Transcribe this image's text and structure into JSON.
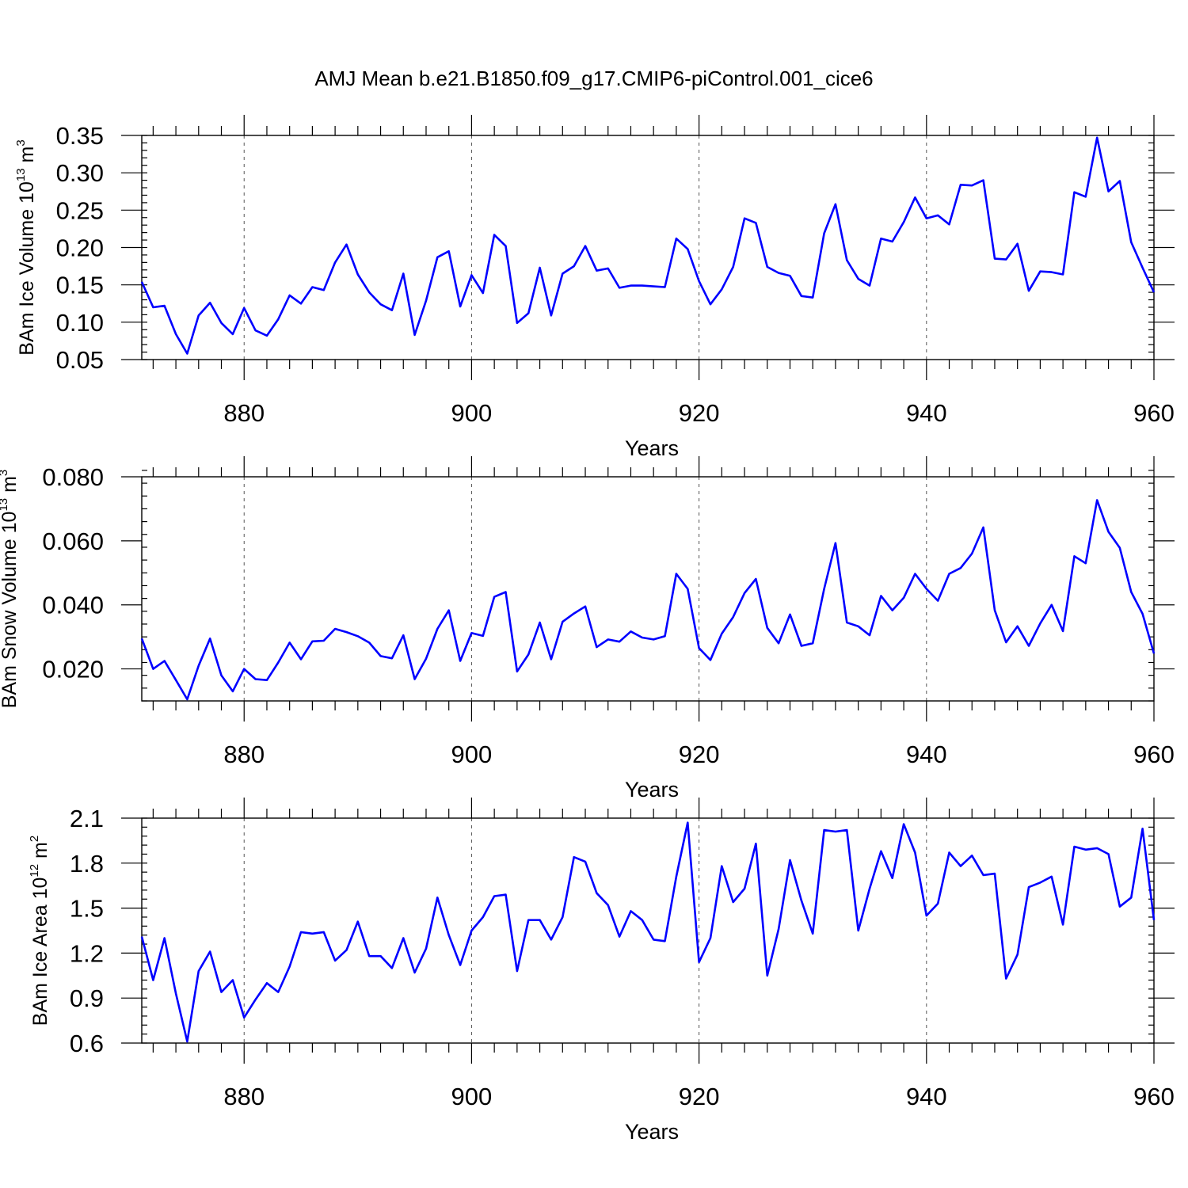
{
  "figure": {
    "title": "AMJ Mean b.e21.B1850.f09_g17.CMIP6-piControl.001_cice6"
  },
  "chart_data": [
    {
      "type": "line",
      "xlabel": "Years",
      "ylabel": {
        "main": "BAm Ice Volume 10",
        "exponent": "13",
        "unit": " m",
        "unit_exponent": "3"
      },
      "xlim": [
        871,
        960
      ],
      "ylim": [
        0.05,
        0.35
      ],
      "xticks": [
        880,
        900,
        920,
        940,
        960
      ],
      "yticks": [
        0.05,
        0.1,
        0.15,
        0.2,
        0.25,
        0.3,
        0.35
      ],
      "ytick_labels": [
        "0.05",
        "0.10",
        "0.15",
        "0.20",
        "0.25",
        "0.30",
        "0.35"
      ],
      "y_minor_step": 0.01,
      "vgrid": [
        880,
        900,
        920,
        940
      ],
      "grid": "dashed vertical",
      "color": "#0000ff",
      "x_start": 871,
      "values": [
        0.154,
        0.12,
        0.122,
        0.084,
        0.058,
        0.109,
        0.126,
        0.099,
        0.084,
        0.119,
        0.089,
        0.082,
        0.104,
        0.136,
        0.125,
        0.147,
        0.143,
        0.18,
        0.204,
        0.164,
        0.14,
        0.124,
        0.116,
        0.165,
        0.083,
        0.129,
        0.187,
        0.195,
        0.121,
        0.163,
        0.139,
        0.217,
        0.202,
        0.099,
        0.112,
        0.173,
        0.109,
        0.165,
        0.175,
        0.202,
        0.169,
        0.172,
        0.146,
        0.149,
        0.149,
        0.148,
        0.147,
        0.212,
        0.198,
        0.155,
        0.124,
        0.144,
        0.174,
        0.239,
        0.233,
        0.174,
        0.166,
        0.162,
        0.135,
        0.133,
        0.219,
        0.258,
        0.183,
        0.158,
        0.149,
        0.212,
        0.208,
        0.234,
        0.267,
        0.239,
        0.243,
        0.231,
        0.284,
        0.283,
        0.29,
        0.185,
        0.184,
        0.205,
        0.142,
        0.168,
        0.167,
        0.164,
        0.274,
        0.268,
        0.347,
        0.275,
        0.289,
        0.207,
        0.173,
        0.14
      ]
    },
    {
      "type": "line",
      "xlabel": "Years",
      "ylabel": {
        "main": "BAm Snow Volume 10",
        "exponent": "13",
        "unit": " m",
        "unit_exponent": "3"
      },
      "xlim": [
        871,
        960
      ],
      "ylim": [
        0.01,
        0.08
      ],
      "xticks": [
        880,
        900,
        920,
        940,
        960
      ],
      "yticks": [
        0.02,
        0.04,
        0.06,
        0.08
      ],
      "ytick_labels": [
        "0.020",
        "0.040",
        "0.060",
        "0.080"
      ],
      "y_minor_step": 0.004,
      "vgrid": [
        880,
        900,
        920,
        940
      ],
      "grid": "dashed vertical",
      "color": "#0000ff",
      "x_start": 871,
      "values": [
        0.0295,
        0.02,
        0.0225,
        0.0165,
        0.0105,
        0.021,
        0.0295,
        0.018,
        0.013,
        0.02,
        0.0168,
        0.0165,
        0.022,
        0.0282,
        0.023,
        0.0286,
        0.0288,
        0.0325,
        0.0315,
        0.0302,
        0.0282,
        0.024,
        0.0233,
        0.0305,
        0.0168,
        0.0232,
        0.0325,
        0.0383,
        0.0225,
        0.0312,
        0.0303,
        0.0425,
        0.044,
        0.0192,
        0.0245,
        0.0345,
        0.023,
        0.0347,
        0.0373,
        0.0395,
        0.0268,
        0.0292,
        0.0285,
        0.0317,
        0.0298,
        0.0292,
        0.0302,
        0.0497,
        0.045,
        0.0265,
        0.0228,
        0.031,
        0.0362,
        0.0437,
        0.0481,
        0.0328,
        0.028,
        0.037,
        0.0272,
        0.028,
        0.045,
        0.0593,
        0.0345,
        0.0333,
        0.0305,
        0.0428,
        0.0383,
        0.0422,
        0.0497,
        0.045,
        0.0413,
        0.0497,
        0.0515,
        0.056,
        0.0642,
        0.0383,
        0.0283,
        0.0333,
        0.0272,
        0.0342,
        0.04,
        0.0318,
        0.0552,
        0.053,
        0.0727,
        0.0628,
        0.0578,
        0.044,
        0.0372,
        0.0248
      ]
    },
    {
      "type": "line",
      "xlabel": "Years",
      "ylabel": {
        "main": "BAm Ice Area 10",
        "exponent": "12",
        "unit": " m",
        "unit_exponent": "2"
      },
      "xlim": [
        871,
        960
      ],
      "ylim": [
        0.6,
        2.1
      ],
      "xticks": [
        880,
        900,
        920,
        940,
        960
      ],
      "yticks": [
        0.6,
        0.9,
        1.2,
        1.5,
        1.8,
        2.1
      ],
      "ytick_labels": [
        "0.6",
        "0.9",
        "1.2",
        "1.5",
        "1.8",
        "2.1"
      ],
      "y_minor_step": 0.06,
      "vgrid": [
        880,
        900,
        920,
        940
      ],
      "grid": "dashed vertical",
      "color": "#0000ff",
      "x_start": 871,
      "values": [
        1.31,
        1.02,
        1.3,
        0.93,
        0.61,
        1.08,
        1.21,
        0.94,
        1.02,
        0.77,
        0.89,
        1.0,
        0.94,
        1.11,
        1.34,
        1.33,
        1.34,
        1.15,
        1.22,
        1.41,
        1.18,
        1.18,
        1.1,
        1.3,
        1.07,
        1.23,
        1.57,
        1.32,
        1.12,
        1.35,
        1.44,
        1.58,
        1.59,
        1.08,
        1.42,
        1.42,
        1.29,
        1.44,
        1.84,
        1.81,
        1.6,
        1.52,
        1.31,
        1.48,
        1.42,
        1.29,
        1.28,
        1.71,
        2.07,
        1.14,
        1.3,
        1.78,
        1.54,
        1.63,
        1.93,
        1.05,
        1.36,
        1.82,
        1.55,
        1.33,
        2.02,
        2.01,
        2.02,
        1.35,
        1.63,
        1.88,
        1.7,
        2.06,
        1.87,
        1.45,
        1.53,
        1.87,
        1.78,
        1.85,
        1.72,
        1.73,
        1.03,
        1.19,
        1.64,
        1.67,
        1.71,
        1.39,
        1.91,
        1.89,
        1.9,
        1.86,
        1.51,
        1.57,
        2.03,
        1.42
      ]
    }
  ]
}
